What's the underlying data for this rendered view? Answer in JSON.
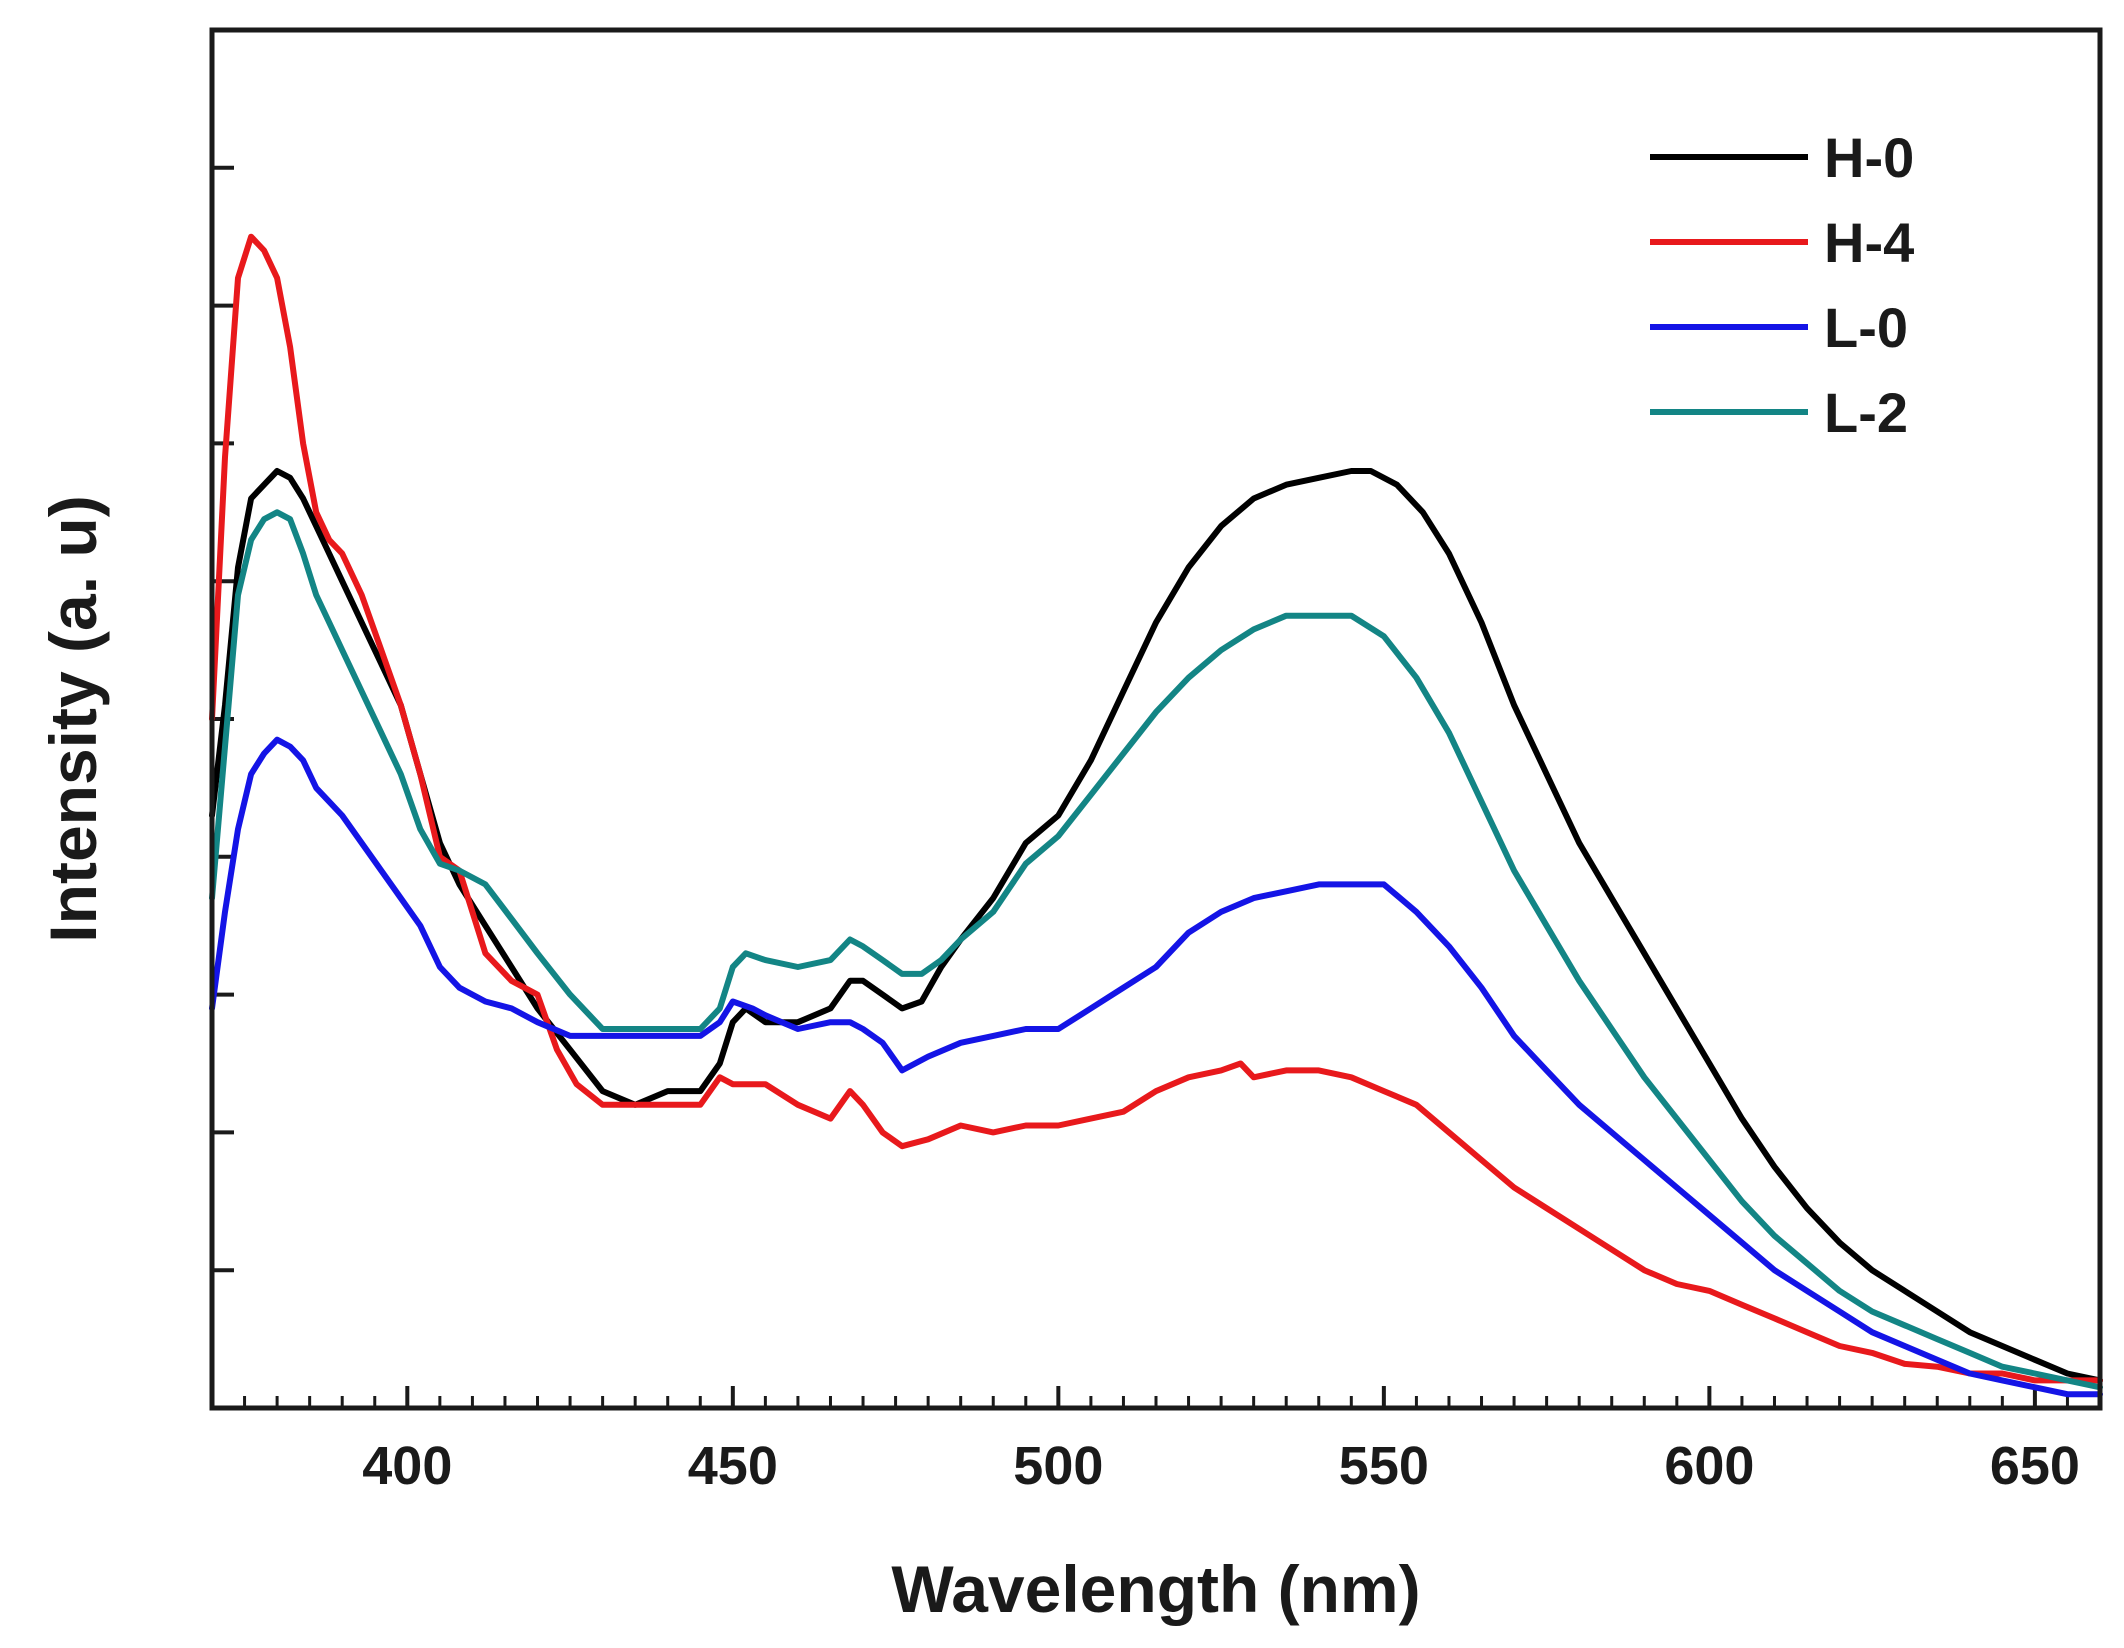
{
  "chart_data": {
    "type": "line",
    "title": "",
    "xlabel": "Wavelength (nm)",
    "ylabel": "Intensity (a. u)",
    "xlim": [
      370,
      660
    ],
    "ylim": [
      0,
      10
    ],
    "xticks": [
      400,
      450,
      500,
      550,
      600,
      650
    ],
    "xtick_labels": [
      "400",
      "450",
      "500",
      "550",
      "600",
      "650"
    ],
    "xminor_step": 5,
    "yticks": [
      1,
      2,
      3,
      4,
      5,
      6,
      7,
      8,
      9
    ],
    "y_tick_labels_shown": false,
    "grid": false,
    "legend_position": "top-right",
    "series": [
      {
        "name": "H-0",
        "color": "#000000",
        "x": [
          370,
          372,
          374,
          376,
          378,
          380,
          382,
          384,
          386,
          388,
          390,
          393,
          396,
          399,
          402,
          405,
          408,
          412,
          416,
          420,
          425,
          430,
          435,
          440,
          445,
          448,
          450,
          452,
          455,
          460,
          465,
          468,
          470,
          473,
          476,
          479,
          482,
          485,
          490,
          495,
          500,
          505,
          510,
          515,
          520,
          525,
          530,
          535,
          540,
          545,
          548,
          552,
          556,
          560,
          565,
          570,
          575,
          580,
          585,
          590,
          595,
          600,
          605,
          610,
          615,
          620,
          625,
          630,
          635,
          640,
          645,
          650,
          655,
          660
        ],
        "y": [
          4.3,
          5.1,
          6.1,
          6.6,
          6.7,
          6.8,
          6.75,
          6.6,
          6.4,
          6.2,
          6.0,
          5.7,
          5.4,
          5.1,
          4.6,
          4.1,
          3.8,
          3.5,
          3.2,
          2.9,
          2.6,
          2.3,
          2.2,
          2.3,
          2.3,
          2.5,
          2.8,
          2.9,
          2.8,
          2.8,
          2.9,
          3.1,
          3.1,
          3.0,
          2.9,
          2.95,
          3.2,
          3.4,
          3.7,
          4.1,
          4.3,
          4.7,
          5.2,
          5.7,
          6.1,
          6.4,
          6.6,
          6.7,
          6.75,
          6.8,
          6.8,
          6.7,
          6.5,
          6.2,
          5.7,
          5.1,
          4.6,
          4.1,
          3.7,
          3.3,
          2.9,
          2.5,
          2.1,
          1.75,
          1.45,
          1.2,
          1.0,
          0.85,
          0.7,
          0.55,
          0.45,
          0.35,
          0.25,
          0.2
        ]
      },
      {
        "name": "H-4",
        "color": "#e8191c",
        "x": [
          370,
          372,
          374,
          376,
          378,
          380,
          382,
          384,
          386,
          388,
          390,
          393,
          396,
          399,
          402,
          405,
          408,
          412,
          416,
          420,
          423,
          426,
          430,
          435,
          440,
          445,
          448,
          450,
          455,
          460,
          465,
          468,
          470,
          473,
          476,
          480,
          485,
          490,
          495,
          500,
          505,
          510,
          515,
          520,
          525,
          528,
          530,
          535,
          540,
          545,
          550,
          555,
          560,
          565,
          570,
          575,
          580,
          585,
          590,
          595,
          600,
          605,
          610,
          615,
          620,
          625,
          630,
          635,
          640,
          645,
          650,
          655,
          660
        ],
        "y": [
          5.0,
          6.9,
          8.2,
          8.5,
          8.4,
          8.2,
          7.7,
          7.0,
          6.5,
          6.3,
          6.2,
          5.9,
          5.5,
          5.1,
          4.6,
          4.0,
          3.9,
          3.3,
          3.1,
          3.0,
          2.6,
          2.35,
          2.2,
          2.2,
          2.2,
          2.2,
          2.4,
          2.35,
          2.35,
          2.2,
          2.1,
          2.3,
          2.2,
          2.0,
          1.9,
          1.95,
          2.05,
          2.0,
          2.05,
          2.05,
          2.1,
          2.15,
          2.3,
          2.4,
          2.45,
          2.5,
          2.4,
          2.45,
          2.45,
          2.4,
          2.3,
          2.2,
          2.0,
          1.8,
          1.6,
          1.45,
          1.3,
          1.15,
          1.0,
          0.9,
          0.85,
          0.75,
          0.65,
          0.55,
          0.45,
          0.4,
          0.32,
          0.3,
          0.25,
          0.25,
          0.2,
          0.2,
          0.2
        ]
      },
      {
        "name": "L-0",
        "color": "#1414e6",
        "x": [
          370,
          372,
          374,
          376,
          378,
          380,
          382,
          384,
          386,
          388,
          390,
          393,
          396,
          399,
          402,
          405,
          408,
          412,
          416,
          420,
          425,
          430,
          435,
          440,
          445,
          448,
          450,
          453,
          455,
          460,
          465,
          468,
          470,
          473,
          476,
          480,
          485,
          490,
          495,
          500,
          505,
          510,
          515,
          520,
          525,
          530,
          535,
          540,
          545,
          550,
          555,
          560,
          565,
          570,
          575,
          580,
          585,
          590,
          595,
          600,
          605,
          610,
          615,
          620,
          625,
          630,
          635,
          640,
          645,
          650,
          655,
          660
        ],
        "y": [
          2.9,
          3.6,
          4.2,
          4.6,
          4.75,
          4.85,
          4.8,
          4.7,
          4.5,
          4.4,
          4.3,
          4.1,
          3.9,
          3.7,
          3.5,
          3.2,
          3.05,
          2.95,
          2.9,
          2.8,
          2.7,
          2.7,
          2.7,
          2.7,
          2.7,
          2.8,
          2.95,
          2.9,
          2.85,
          2.75,
          2.8,
          2.8,
          2.75,
          2.65,
          2.45,
          2.55,
          2.65,
          2.7,
          2.75,
          2.75,
          2.9,
          3.05,
          3.2,
          3.45,
          3.6,
          3.7,
          3.75,
          3.8,
          3.8,
          3.8,
          3.6,
          3.35,
          3.05,
          2.7,
          2.45,
          2.2,
          2.0,
          1.8,
          1.6,
          1.4,
          1.2,
          1.0,
          0.85,
          0.7,
          0.55,
          0.45,
          0.35,
          0.25,
          0.2,
          0.15,
          0.1,
          0.1
        ]
      },
      {
        "name": "L-2",
        "color": "#138585",
        "x": [
          370,
          372,
          374,
          376,
          378,
          380,
          382,
          384,
          386,
          388,
          390,
          393,
          396,
          399,
          402,
          405,
          408,
          412,
          416,
          420,
          425,
          430,
          435,
          440,
          445,
          448,
          450,
          452,
          455,
          460,
          465,
          468,
          470,
          473,
          476,
          479,
          482,
          485,
          490,
          495,
          500,
          505,
          510,
          515,
          520,
          525,
          530,
          535,
          540,
          545,
          550,
          555,
          560,
          565,
          570,
          575,
          580,
          585,
          590,
          595,
          600,
          605,
          610,
          615,
          620,
          625,
          630,
          635,
          640,
          645,
          650,
          655,
          660
        ],
        "y": [
          3.7,
          4.8,
          5.9,
          6.3,
          6.45,
          6.5,
          6.45,
          6.2,
          5.9,
          5.7,
          5.5,
          5.2,
          4.9,
          4.6,
          4.2,
          3.95,
          3.9,
          3.8,
          3.55,
          3.3,
          3.0,
          2.75,
          2.75,
          2.75,
          2.75,
          2.9,
          3.2,
          3.3,
          3.25,
          3.2,
          3.25,
          3.4,
          3.35,
          3.25,
          3.15,
          3.15,
          3.25,
          3.4,
          3.6,
          3.95,
          4.15,
          4.45,
          4.75,
          5.05,
          5.3,
          5.5,
          5.65,
          5.75,
          5.75,
          5.75,
          5.6,
          5.3,
          4.9,
          4.4,
          3.9,
          3.5,
          3.1,
          2.75,
          2.4,
          2.1,
          1.8,
          1.5,
          1.25,
          1.05,
          0.85,
          0.7,
          0.6,
          0.5,
          0.4,
          0.3,
          0.25,
          0.2,
          0.15
        ]
      }
    ]
  }
}
